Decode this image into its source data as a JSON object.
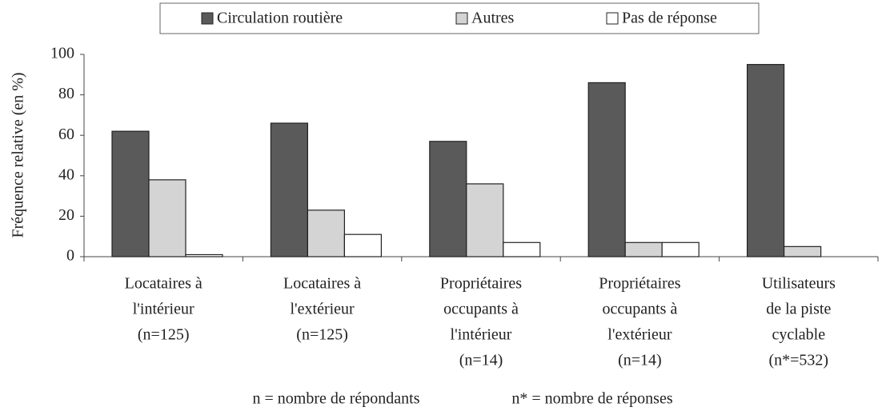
{
  "chart_data": {
    "type": "bar",
    "ylabel": "Fréquence relative (en %)",
    "categories": [
      [
        "Locataires à",
        "l'intérieur",
        "(n=125)"
      ],
      [
        "Locataires à",
        "l'extérieur",
        "(n=125)"
      ],
      [
        "Propriétaires",
        "occupants à",
        "l'intérieur",
        "(n=14)"
      ],
      [
        "Propriétaires",
        "occupants à",
        "l'extérieur",
        "(n=14)"
      ],
      [
        "Utilisateurs",
        "de la piste",
        "cyclable",
        "(n*=532)"
      ]
    ],
    "series": [
      {
        "name": "Circulation routière",
        "color": "#5a5a5a",
        "values": [
          62,
          66,
          57,
          86,
          95
        ]
      },
      {
        "name": "Autres",
        "color": "#d4d4d4",
        "values": [
          38,
          23,
          36,
          7,
          5
        ]
      },
      {
        "name": "Pas de réponse",
        "color": "#ffffff",
        "values": [
          1,
          11,
          7,
          7,
          0
        ]
      }
    ],
    "ylim": [
      0,
      100
    ],
    "yticks": [
      0,
      20,
      40,
      60,
      80,
      100
    ],
    "grid": false,
    "notes": [
      "n = nombre de répondants",
      "n* = nombre de réponses"
    ]
  }
}
